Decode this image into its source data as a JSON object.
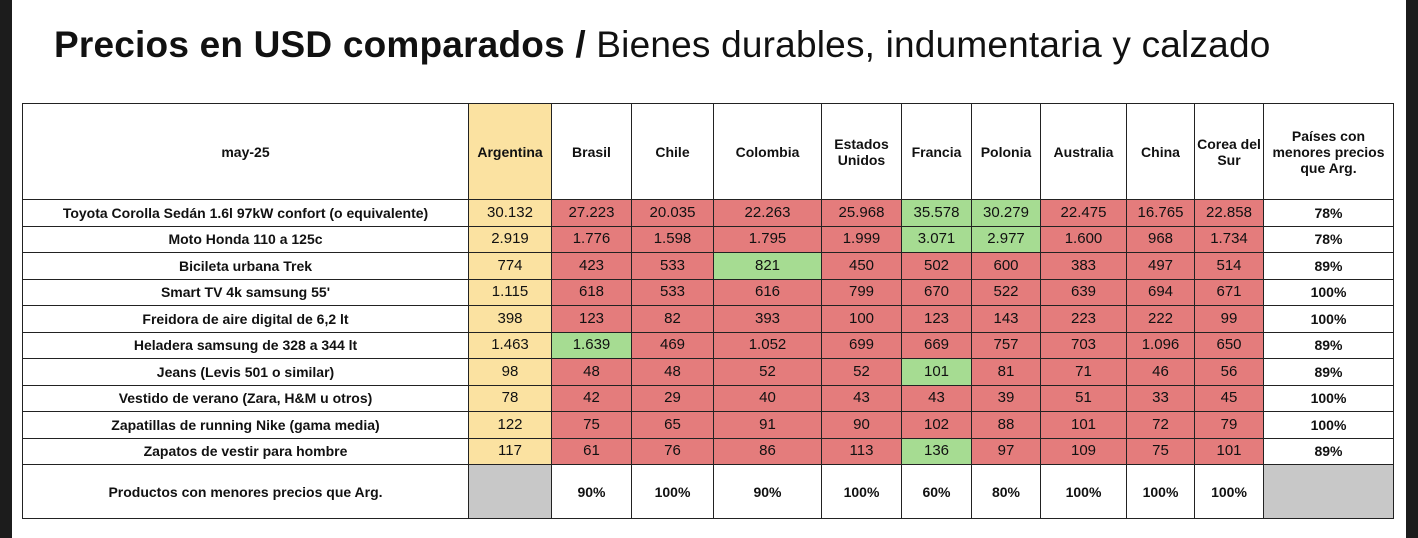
{
  "title": {
    "bold": "Precios en USD comparados /",
    "regular": "Bienes durables, indumentaria y calzado"
  },
  "colors": {
    "higher_than_arg": "#e47c7c",
    "lower_than_arg_green": "#a6dc92",
    "argentina": "#fbe2a1",
    "empty": "#c8c8c8"
  },
  "chart_data": {
    "type": "table",
    "header": {
      "period": "may-25",
      "countries": [
        "Argentina",
        "Brasil",
        "Chile",
        "Colombia",
        "Estados Unidos",
        "Francia",
        "Polonia",
        "Australia",
        "China",
        "Corea del Sur"
      ],
      "summary_col": "Países con menores precios que Arg."
    },
    "rows": [
      {
        "product": "Toyota Corolla Sedán 1.6l 97kW confort (o equivalente)",
        "values": [
          "30.132",
          "27.223",
          "20.035",
          "22.263",
          "25.968",
          "35.578",
          "30.279",
          "22.475",
          "16.765",
          "22.858"
        ],
        "cells": [
          "arg",
          "red",
          "red",
          "red",
          "red",
          "green",
          "green",
          "red",
          "red",
          "red"
        ],
        "pct": "78%"
      },
      {
        "product": "Moto Honda 110 a 125c",
        "values": [
          "2.919",
          "1.776",
          "1.598",
          "1.795",
          "1.999",
          "3.071",
          "2.977",
          "1.600",
          "968",
          "1.734"
        ],
        "cells": [
          "arg",
          "red",
          "red",
          "red",
          "red",
          "green",
          "green",
          "red",
          "red",
          "red"
        ],
        "pct": "78%"
      },
      {
        "product": "Bicileta urbana Trek",
        "values": [
          "774",
          "423",
          "533",
          "821",
          "450",
          "502",
          "600",
          "383",
          "497",
          "514"
        ],
        "cells": [
          "arg",
          "red",
          "red",
          "green",
          "red",
          "red",
          "red",
          "red",
          "red",
          "red"
        ],
        "pct": "89%"
      },
      {
        "product": "Smart TV 4k samsung 55'",
        "values": [
          "1.115",
          "618",
          "533",
          "616",
          "799",
          "670",
          "522",
          "639",
          "694",
          "671"
        ],
        "cells": [
          "arg",
          "red",
          "red",
          "red",
          "red",
          "red",
          "red",
          "red",
          "red",
          "red"
        ],
        "pct": "100%"
      },
      {
        "product": "Freidora de aire digital de 6,2 lt",
        "values": [
          "398",
          "123",
          "82",
          "393",
          "100",
          "123",
          "143",
          "223",
          "222",
          "99"
        ],
        "cells": [
          "arg",
          "red",
          "red",
          "red",
          "red",
          "red",
          "red",
          "red",
          "red",
          "red"
        ],
        "pct": "100%"
      },
      {
        "product": "Heladera samsung de 328 a 344 lt",
        "values": [
          "1.463",
          "1.639",
          "469",
          "1.052",
          "699",
          "669",
          "757",
          "703",
          "1.096",
          "650"
        ],
        "cells": [
          "arg",
          "green",
          "red",
          "red",
          "red",
          "red",
          "red",
          "red",
          "red",
          "red"
        ],
        "pct": "89%"
      },
      {
        "product": "Jeans (Levis 501 o similar)",
        "values": [
          "98",
          "48",
          "48",
          "52",
          "52",
          "101",
          "81",
          "71",
          "46",
          "56"
        ],
        "cells": [
          "arg",
          "red",
          "red",
          "red",
          "red",
          "green",
          "red",
          "red",
          "red",
          "red"
        ],
        "pct": "89%"
      },
      {
        "product": "Vestido de verano (Zara, H&M u otros)",
        "values": [
          "78",
          "42",
          "29",
          "40",
          "43",
          "43",
          "39",
          "51",
          "33",
          "45"
        ],
        "cells": [
          "arg",
          "red",
          "red",
          "red",
          "red",
          "red",
          "red",
          "red",
          "red",
          "red"
        ],
        "pct": "100%"
      },
      {
        "product": "Zapatillas de running Nike (gama media)",
        "values": [
          "122",
          "75",
          "65",
          "91",
          "90",
          "102",
          "88",
          "101",
          "72",
          "79"
        ],
        "cells": [
          "arg",
          "red",
          "red",
          "red",
          "red",
          "red",
          "red",
          "red",
          "red",
          "red"
        ],
        "pct": "100%"
      },
      {
        "product": "Zapatos de vestir para hombre",
        "values": [
          "117",
          "61",
          "76",
          "86",
          "113",
          "136",
          "97",
          "109",
          "75",
          "101"
        ],
        "cells": [
          "arg",
          "red",
          "red",
          "red",
          "red",
          "green",
          "red",
          "red",
          "red",
          "red"
        ],
        "pct": "89%"
      }
    ],
    "footer": {
      "label": "Productos con menores precios que Arg.",
      "values": [
        "",
        "90%",
        "100%",
        "90%",
        "100%",
        "60%",
        "80%",
        "100%",
        "100%",
        "100%"
      ]
    }
  }
}
